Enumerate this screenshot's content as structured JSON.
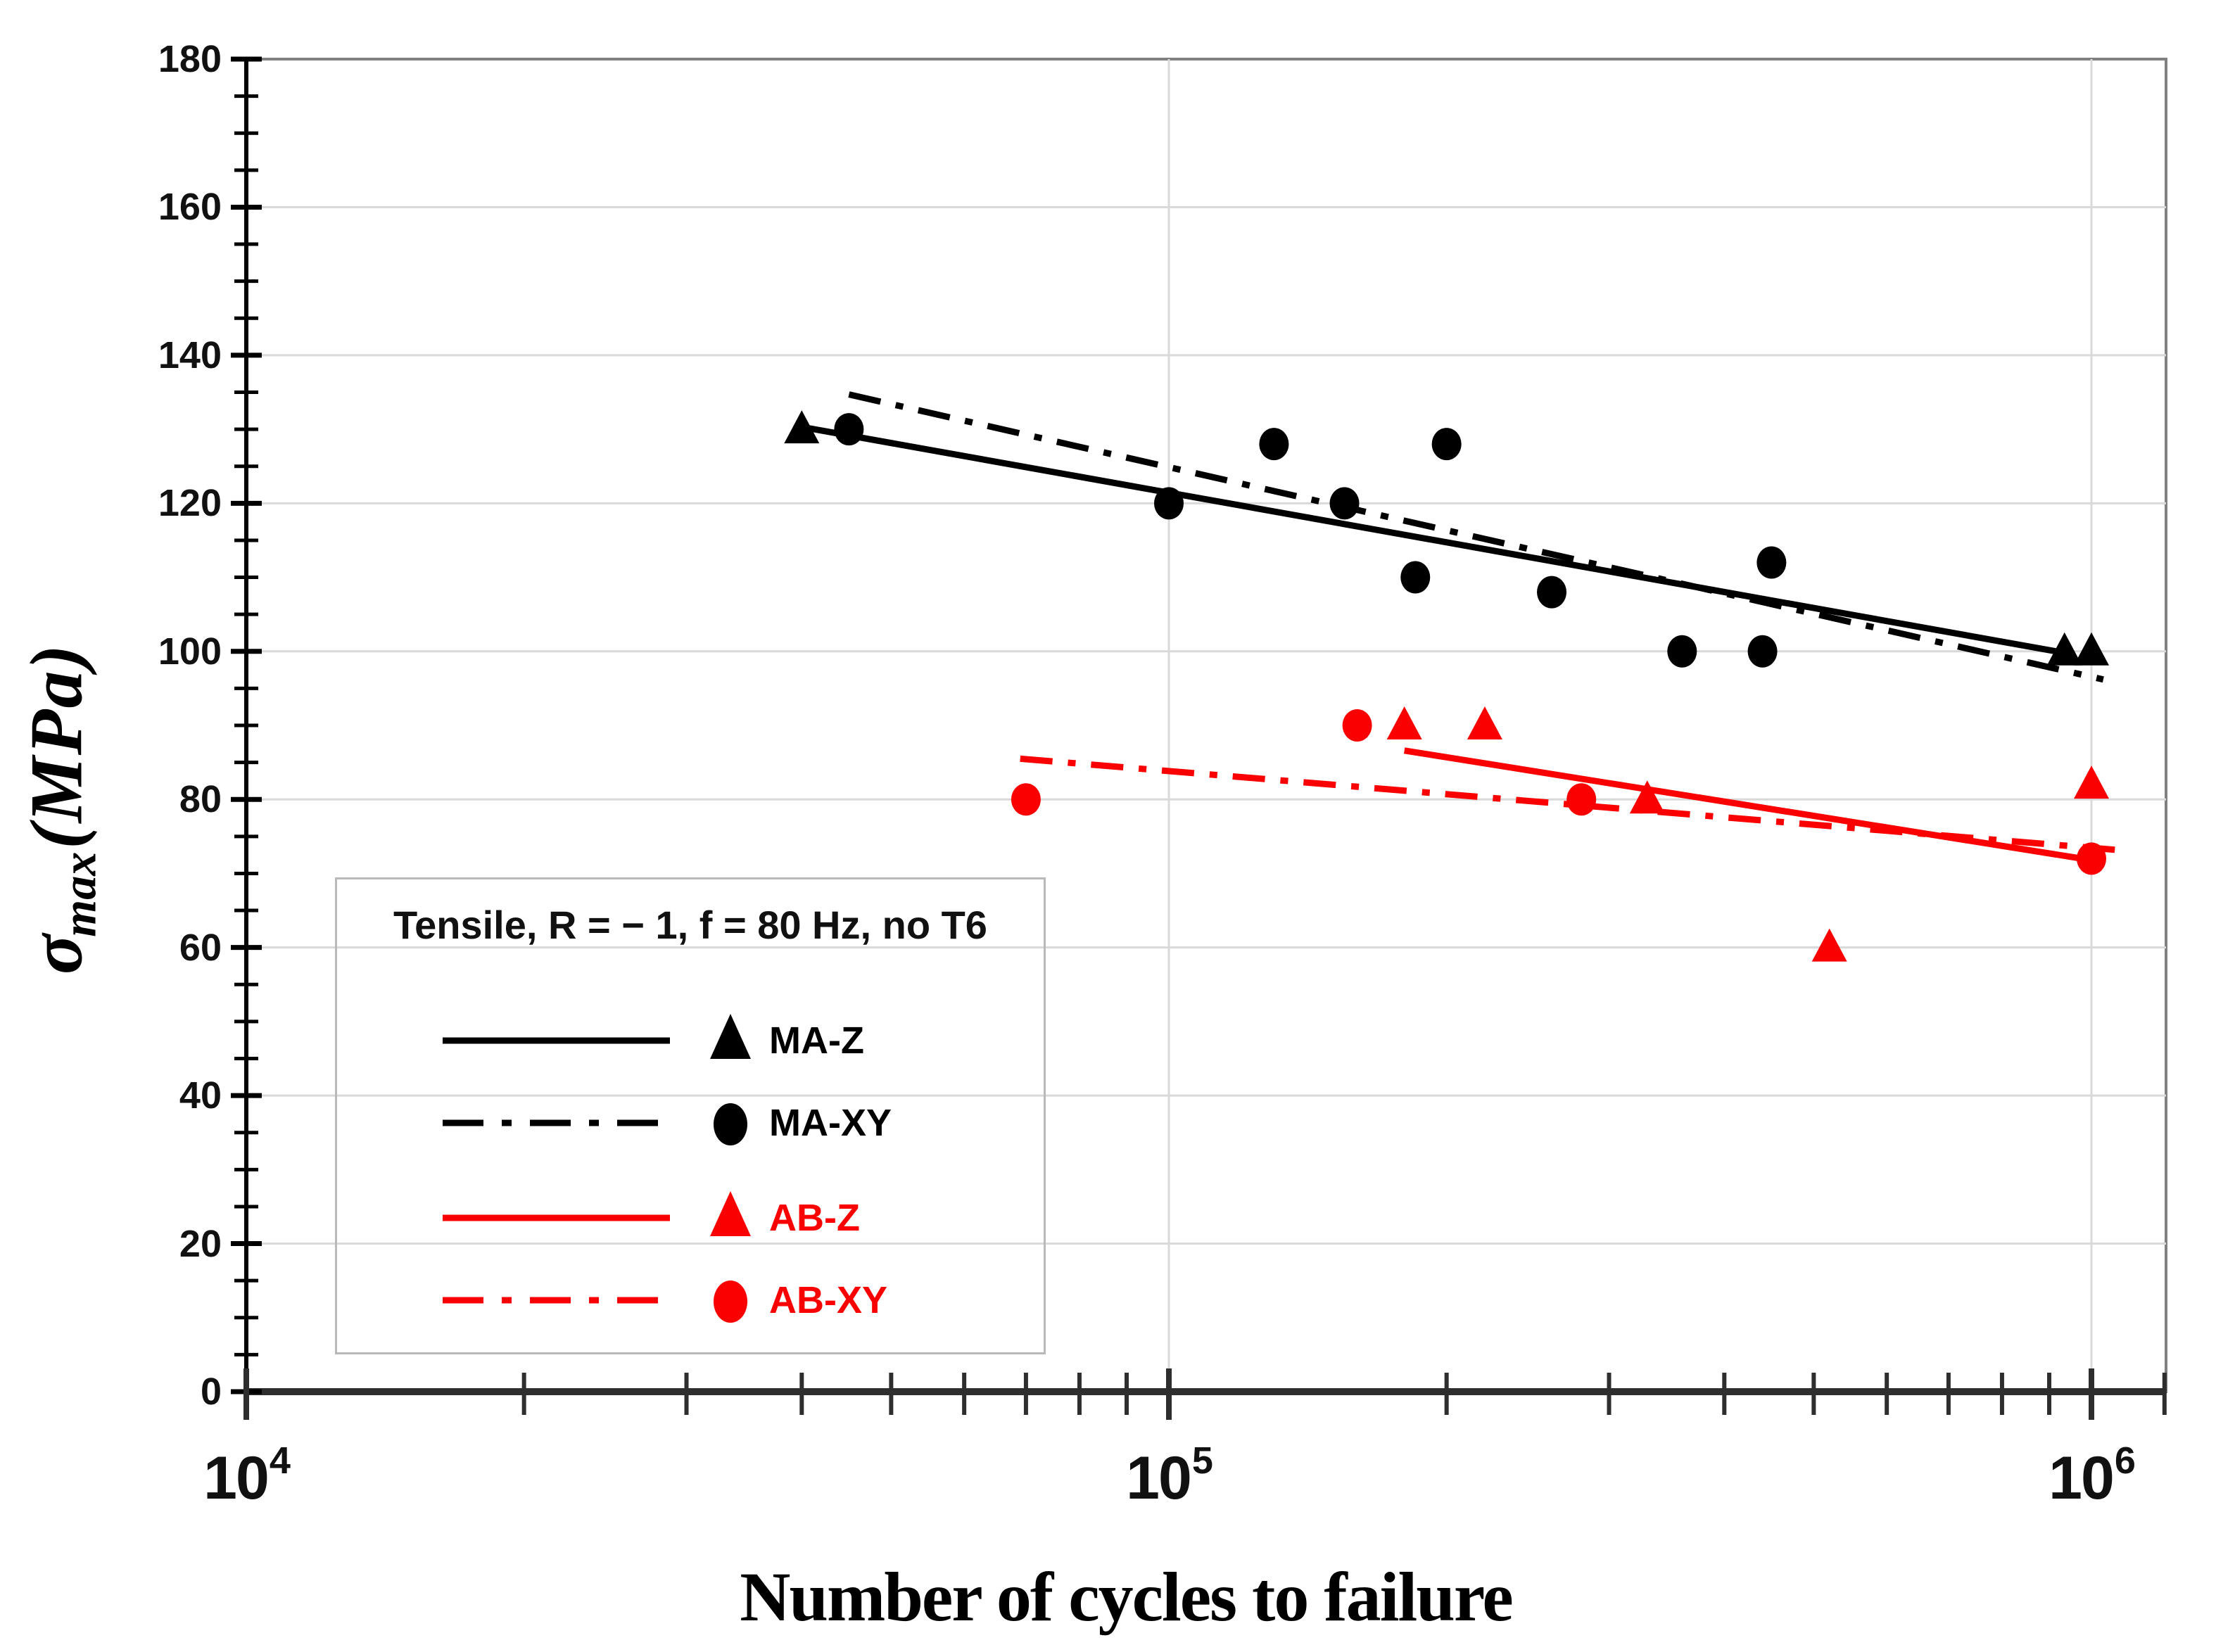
{
  "chart_data": {
    "type": "scatter",
    "title": "",
    "xlabel": "Number of cycles to failure",
    "ylabel_sigma": "σ",
    "ylabel_sub": "max",
    "ylabel_units": "(MPa)",
    "x_axis": {
      "scale": "log",
      "min": 10000,
      "max": 1200000,
      "ticks": [
        {
          "base": "10",
          "exp": "4"
        },
        {
          "base": "10",
          "exp": "5"
        },
        {
          "base": "10",
          "exp": "6"
        }
      ],
      "minor_tick_mantissas": [
        2,
        3,
        4,
        5,
        6,
        7,
        8,
        9
      ]
    },
    "y_axis": {
      "min": 0,
      "max": 180,
      "major_step": 20,
      "minor_step": 5,
      "tick_labels": [
        "0",
        "20",
        "40",
        "60",
        "80",
        "100",
        "120",
        "140",
        "160",
        "180"
      ]
    },
    "grid": {
      "h_values": [
        20,
        40,
        60,
        80,
        100,
        120,
        140,
        160
      ],
      "v_values": [
        100000,
        1000000
      ]
    },
    "legend": {
      "title": "Tensile, R = − 1, f = 80 Hz, no T6",
      "position": "lower-left"
    },
    "series": [
      {
        "name": "MA-Z",
        "color": "#000000",
        "marker": "triangle",
        "line": "solid",
        "points": [
          [
            40000,
            130
          ],
          [
            935000,
            100
          ],
          [
            1000000,
            100
          ]
        ],
        "trend": {
          "x1": 40000,
          "y1": 130.3,
          "x2": 935000,
          "y2": 99.8
        }
      },
      {
        "name": "MA-XY",
        "color": "#000000",
        "marker": "circle",
        "line": "dashdot",
        "points": [
          [
            45000,
            130
          ],
          [
            100000,
            120
          ],
          [
            130000,
            128
          ],
          [
            155000,
            120
          ],
          [
            185000,
            110
          ],
          [
            200000,
            128
          ],
          [
            260000,
            108
          ],
          [
            360000,
            100
          ],
          [
            440000,
            100
          ],
          [
            450000,
            112
          ]
        ],
        "trend": {
          "x1": 45000,
          "y1": 134.7,
          "x2": 1030000,
          "y2": 96.2
        }
      },
      {
        "name": "AB-Z",
        "color": "#fb0000",
        "marker": "triangle",
        "line": "solid",
        "points": [
          [
            180000,
            90
          ],
          [
            220000,
            90
          ],
          [
            330000,
            80
          ],
          [
            520000,
            60
          ],
          [
            1000000,
            82
          ]
        ],
        "trend": {
          "x1": 180000,
          "y1": 86.6,
          "x2": 1000000,
          "y2": 71.8
        }
      },
      {
        "name": "AB-XY",
        "color": "#fb0000",
        "marker": "circle",
        "line": "dashdot",
        "points": [
          [
            70000,
            80
          ],
          [
            160000,
            90
          ],
          [
            280000,
            80
          ],
          [
            1000000,
            72
          ]
        ],
        "trend": {
          "x1": 69000,
          "y1": 85.5,
          "x2": 1060000,
          "y2": 73.2
        }
      }
    ],
    "colors": {
      "background": "#ffffff",
      "grid": "#d9d9d9",
      "border": "#808080",
      "axis": "#2e2e2e",
      "black_series": "#000000",
      "red_series": "#fb0000"
    }
  }
}
